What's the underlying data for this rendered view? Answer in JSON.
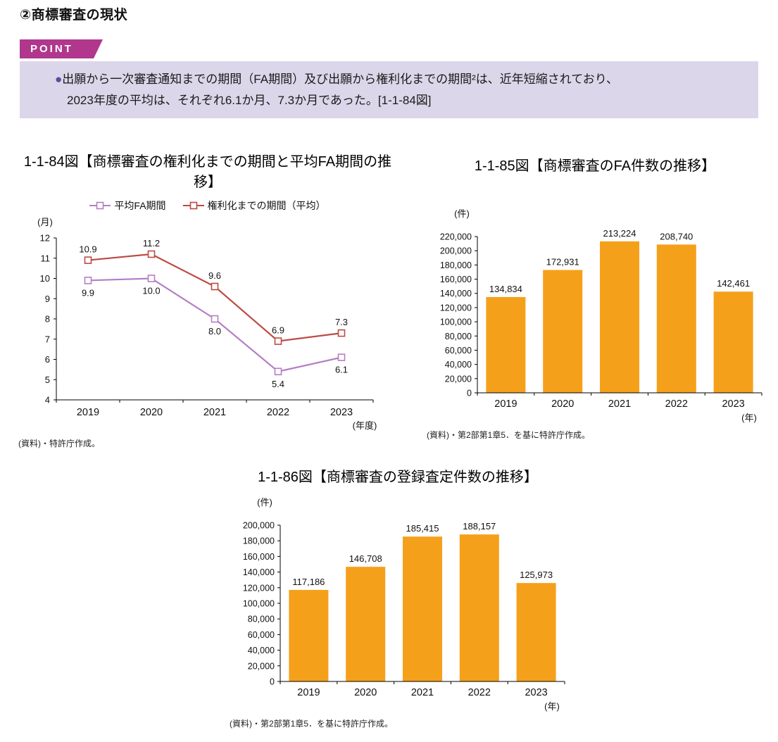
{
  "page": {
    "heading": "②商標審査の現状",
    "point": {
      "badge_label": "POINT",
      "bullet": "●",
      "line1": "出願から一次審査通知までの期間（FA期間）及び出願から権利化までの期間²は、近年短縮されており、",
      "line2": "2023年度の平均は、それぞれ6.1か月、7.3か月であった。[1-1-84図]"
    }
  },
  "colors": {
    "point_badge": "#b0378c",
    "point_box": "#dcd6ea",
    "bullet": "#574d9f",
    "axis": "#111111"
  },
  "chart_data": [
    {
      "id": "fig84",
      "type": "line",
      "title": "1-1-84図【商標審査の権利化までの期間と平均FA期間の推移】",
      "unit_label": "(月)",
      "x_axis_note": "(年度)",
      "categories": [
        "2019",
        "2020",
        "2021",
        "2022",
        "2023"
      ],
      "series": [
        {
          "name": "平均FA期間",
          "color": "#b57fc4",
          "label_pos": "below",
          "values": [
            9.9,
            10.0,
            8.0,
            5.4,
            6.1
          ]
        },
        {
          "name": "権利化までの期間（平均）",
          "color": "#bd4a42",
          "label_pos": "above",
          "values": [
            10.9,
            11.2,
            9.6,
            6.9,
            7.3
          ]
        }
      ],
      "ylim": [
        4,
        12
      ],
      "ytick_step": 1,
      "grid": false,
      "legend_position": "top",
      "source": "(資料)・特許庁作成。"
    },
    {
      "id": "fig85",
      "type": "bar",
      "title": "1-1-85図【商標審査のFA件数の推移】",
      "unit_label": "(件)",
      "x_axis_note": "(年)",
      "categories": [
        "2019",
        "2020",
        "2021",
        "2022",
        "2023"
      ],
      "values": [
        134834,
        172931,
        213224,
        208740,
        142461
      ],
      "labels": [
        "134,834",
        "172,931",
        "213,224",
        "208,740",
        "142,461"
      ],
      "bar_color": "#f5a01b",
      "ylim": [
        0,
        220000
      ],
      "ytick_step": 20000,
      "grid": false,
      "source": "(資料)・第2部第1章5．を基に特許庁作成。"
    },
    {
      "id": "fig86",
      "type": "bar",
      "title": "1-1-86図【商標審査の登録査定件数の推移】",
      "unit_label": "(件)",
      "x_axis_note": "(年)",
      "categories": [
        "2019",
        "2020",
        "2021",
        "2022",
        "2023"
      ],
      "values": [
        117186,
        146708,
        185415,
        188157,
        125973
      ],
      "labels": [
        "117,186",
        "146,708",
        "185,415",
        "188,157",
        "125,973"
      ],
      "bar_color": "#f5a01b",
      "ylim": [
        0,
        200000
      ],
      "ytick_step": 20000,
      "grid": false,
      "source": "(資料)・第2部第1章5．を基に特許庁作成。"
    }
  ]
}
